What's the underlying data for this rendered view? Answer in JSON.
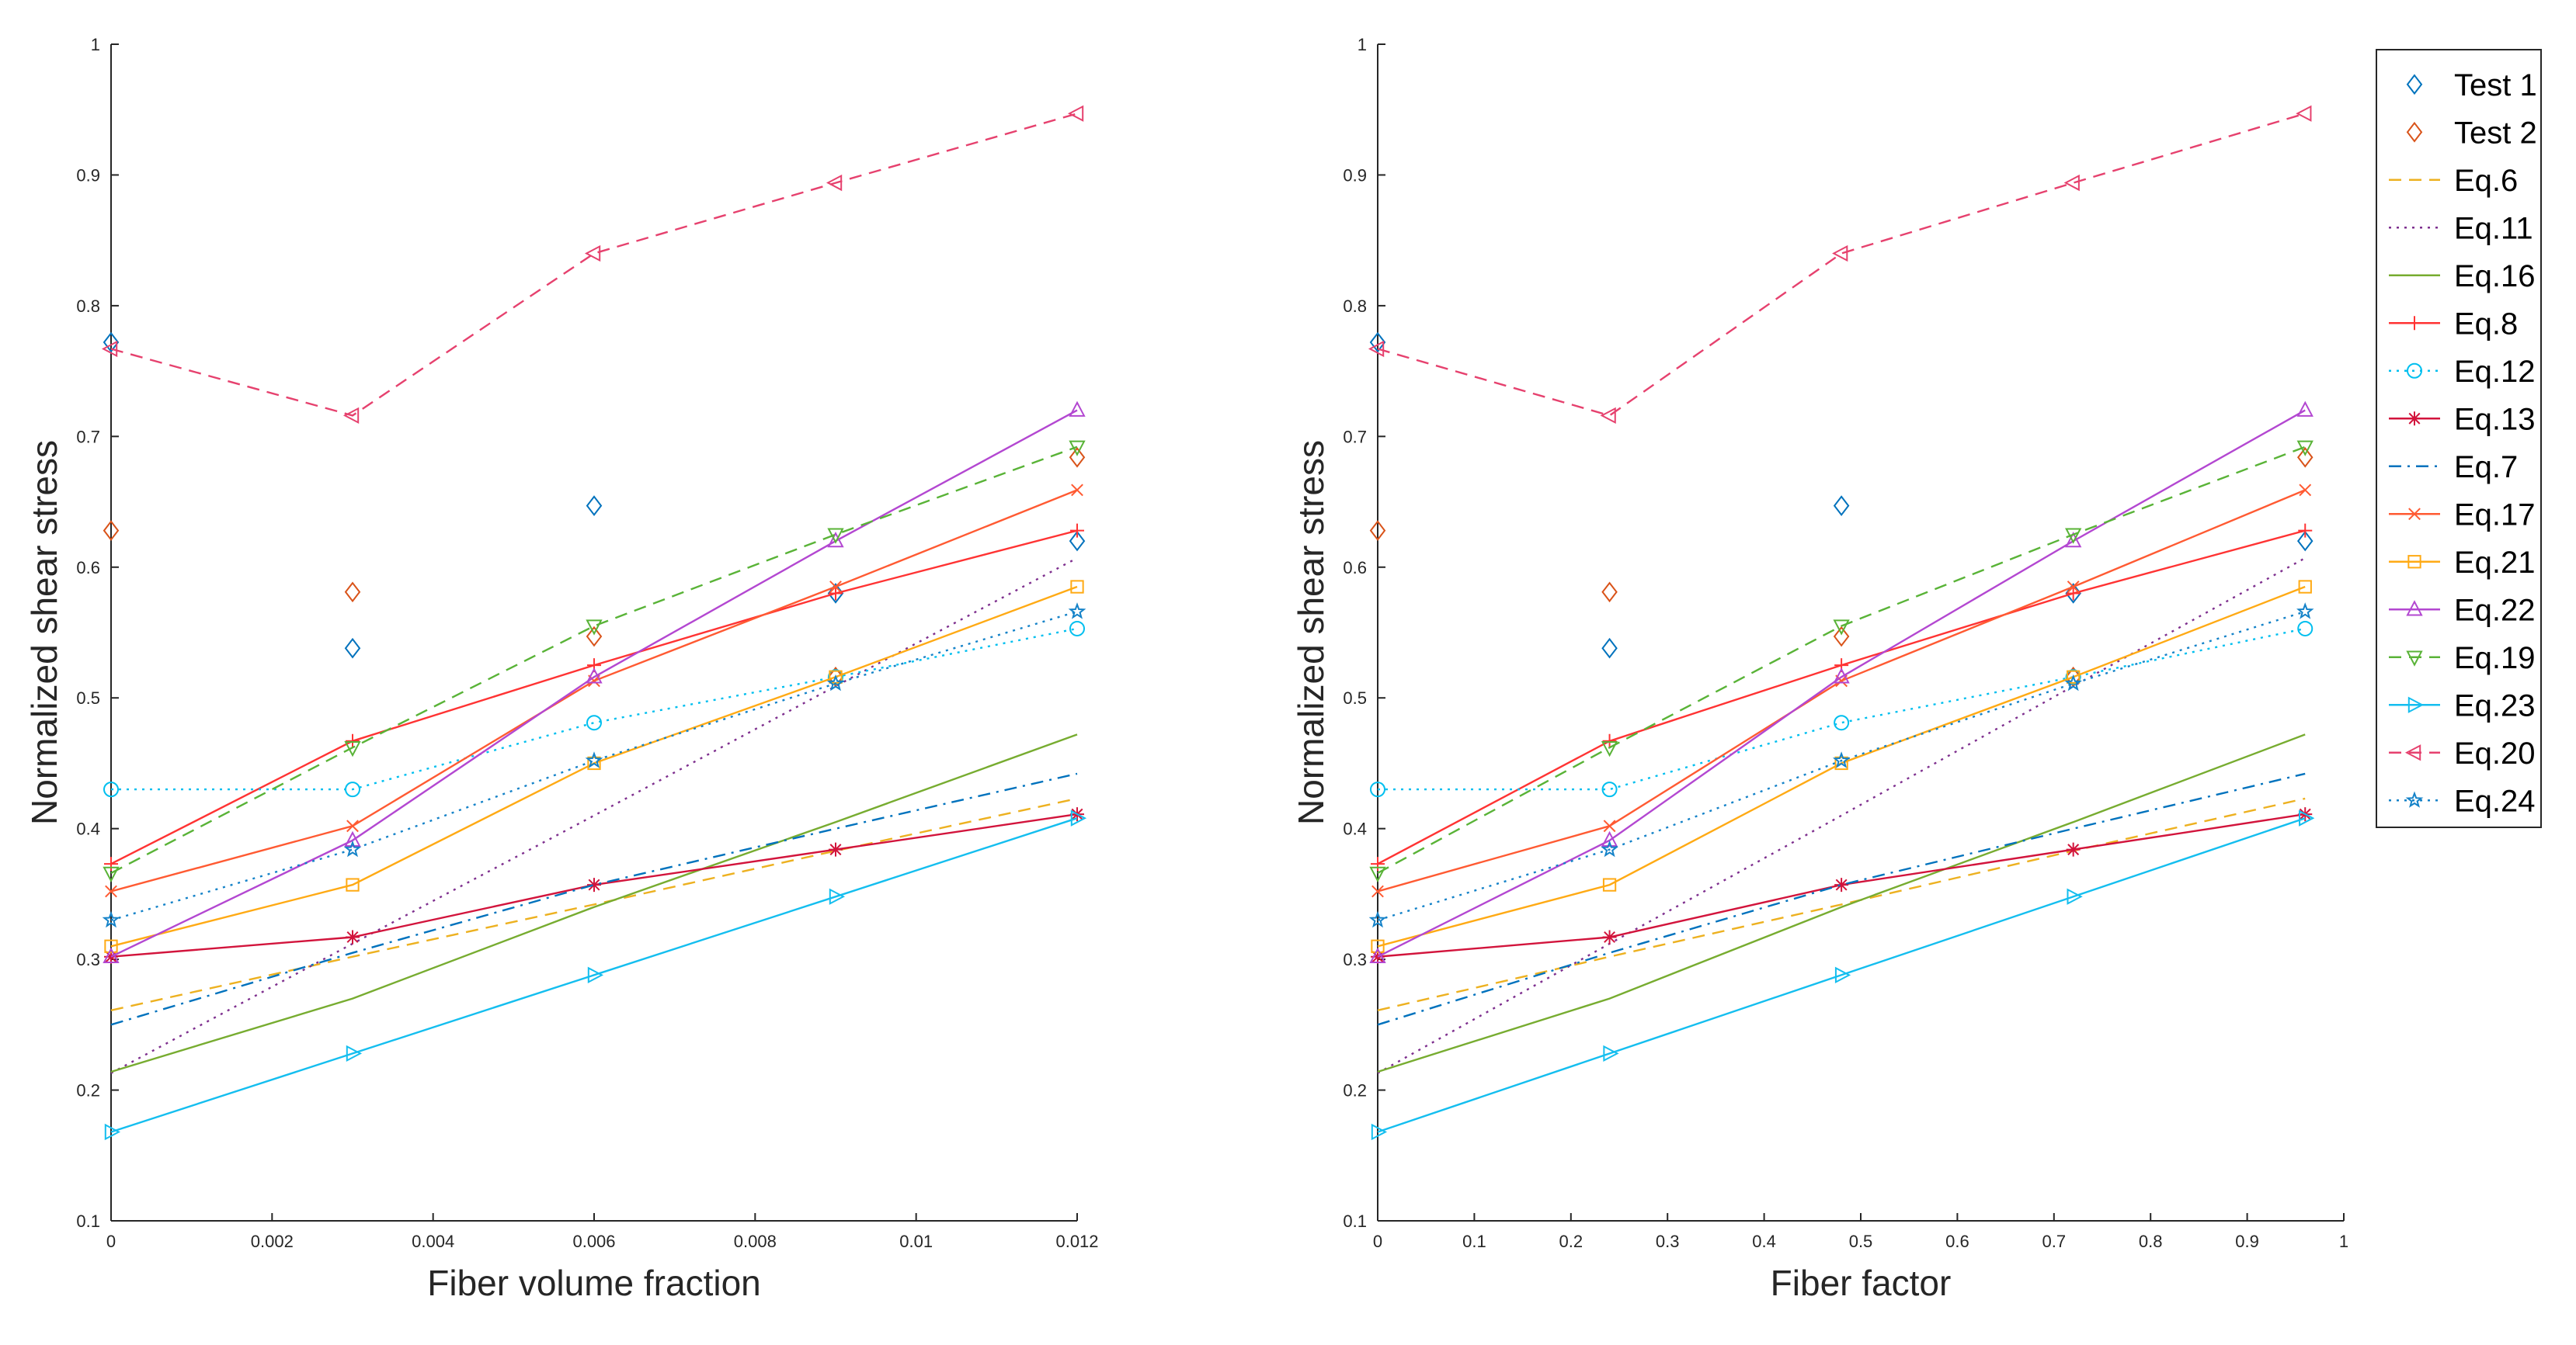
{
  "chart_data": [
    {
      "type": "line",
      "title": "",
      "xlabel": "Fiber volume fraction",
      "ylabel": "Normalized shear stress",
      "xlim": [
        0,
        0.012
      ],
      "ylim": [
        0.1,
        1.0
      ],
      "xticks": [
        "0",
        "0.002",
        "0.004",
        "0.006",
        "0.008",
        "0.01",
        "0.012"
      ],
      "xtick_values": [
        0,
        0.002,
        0.004,
        0.006,
        0.008,
        0.01,
        0.012
      ],
      "yticks": [
        "0.1",
        "0.2",
        "0.3",
        "0.4",
        "0.5",
        "0.6",
        "0.7",
        "0.8",
        "0.9",
        "1"
      ],
      "ytick_values": [
        0.1,
        0.2,
        0.3,
        0.4,
        0.5,
        0.6,
        0.7,
        0.8,
        0.9,
        1.0
      ],
      "x": [
        0,
        0.003,
        0.006,
        0.009,
        0.012
      ]
    },
    {
      "type": "line",
      "title": "",
      "xlabel": "Fiber factor",
      "ylabel": "Normalized shear stress",
      "xlim": [
        0,
        1
      ],
      "ylim": [
        0.1,
        1.0
      ],
      "xticks": [
        "0",
        "0.1",
        "0.2",
        "0.3",
        "0.4",
        "0.5",
        "0.6",
        "0.7",
        "0.8",
        "0.9",
        "1"
      ],
      "xtick_values": [
        0,
        0.1,
        0.2,
        0.3,
        0.4,
        0.5,
        0.6,
        0.7,
        0.8,
        0.9,
        1.0
      ],
      "yticks": [
        "0.1",
        "0.2",
        "0.3",
        "0.4",
        "0.5",
        "0.6",
        "0.7",
        "0.8",
        "0.9",
        "1"
      ],
      "ytick_values": [
        0.1,
        0.2,
        0.3,
        0.4,
        0.5,
        0.6,
        0.7,
        0.8,
        0.9,
        1.0
      ],
      "x": [
        0,
        0.24,
        0.48,
        0.72,
        0.96
      ]
    }
  ],
  "series": [
    {
      "name": "Test 1",
      "values": [
        0.772,
        0.538,
        0.647,
        0.58,
        0.62
      ],
      "color": "#0072BD",
      "marker": "diamond",
      "line": "none"
    },
    {
      "name": "Test 2",
      "values": [
        0.628,
        0.581,
        0.547,
        0.516,
        0.684
      ],
      "color": "#D95319",
      "marker": "diamond",
      "line": "none"
    },
    {
      "name": "Eq.6",
      "values": [
        0.261,
        0.302,
        0.342,
        0.383,
        0.423
      ],
      "color": "#EDB120",
      "marker": "none",
      "line": "dashed"
    },
    {
      "name": "Eq.11",
      "values": [
        0.213,
        0.312,
        0.41,
        0.509,
        0.607
      ],
      "color": "#7E2F8E",
      "marker": "none",
      "line": "dotted"
    },
    {
      "name": "Eq.16",
      "values": [
        0.214,
        0.27,
        0.34,
        0.405,
        0.472
      ],
      "color": "#77AC30",
      "marker": "none",
      "line": "solid"
    },
    {
      "name": "Eq.8",
      "values": [
        0.373,
        0.467,
        0.525,
        0.58,
        0.628
      ],
      "color": "#FF3333",
      "marker": "plus",
      "line": "solid"
    },
    {
      "name": "Eq.12",
      "values": [
        0.43,
        0.43,
        0.481,
        0.516,
        0.553
      ],
      "color": "#00BFEF",
      "marker": "circle",
      "line": "dotted"
    },
    {
      "name": "Eq.13",
      "values": [
        0.302,
        0.317,
        0.357,
        0.384,
        0.411
      ],
      "color": "#D2143C",
      "marker": "asterisk",
      "line": "solid"
    },
    {
      "name": "Eq.7",
      "values": [
        0.25,
        0.305,
        0.357,
        0.4,
        0.442
      ],
      "color": "#0072BD",
      "marker": "none",
      "line": "dashdot"
    },
    {
      "name": "Eq.17",
      "values": [
        0.352,
        0.402,
        0.513,
        0.585,
        0.659
      ],
      "color": "#FF5A32",
      "marker": "x",
      "line": "solid"
    },
    {
      "name": "Eq.21",
      "values": [
        0.31,
        0.357,
        0.45,
        0.516,
        0.585
      ],
      "color": "#FFAA14",
      "marker": "square",
      "line": "solid"
    },
    {
      "name": "Eq.22",
      "values": [
        0.302,
        0.391,
        0.516,
        0.62,
        0.72
      ],
      "color": "#B347D1",
      "marker": "triangle-up",
      "line": "solid"
    },
    {
      "name": "Eq.19",
      "values": [
        0.366,
        0.462,
        0.555,
        0.625,
        0.692
      ],
      "color": "#59B337",
      "marker": "triangle-down",
      "line": "dashed"
    },
    {
      "name": "Eq.23",
      "values": [
        0.168,
        0.228,
        0.288,
        0.348,
        0.408
      ],
      "color": "#14BEEF",
      "marker": "triangle-right",
      "line": "solid"
    },
    {
      "name": "Eq.20",
      "values": [
        0.767,
        0.716,
        0.84,
        0.894,
        0.947
      ],
      "color": "#E6416E",
      "marker": "triangle-left",
      "line": "dashed"
    },
    {
      "name": "Eq.24",
      "values": [
        0.33,
        0.384,
        0.452,
        0.511,
        0.566
      ],
      "color": "#1482C8",
      "marker": "pentagram",
      "line": "dotted"
    }
  ],
  "legend": {
    "placement": "outside-right-top"
  }
}
